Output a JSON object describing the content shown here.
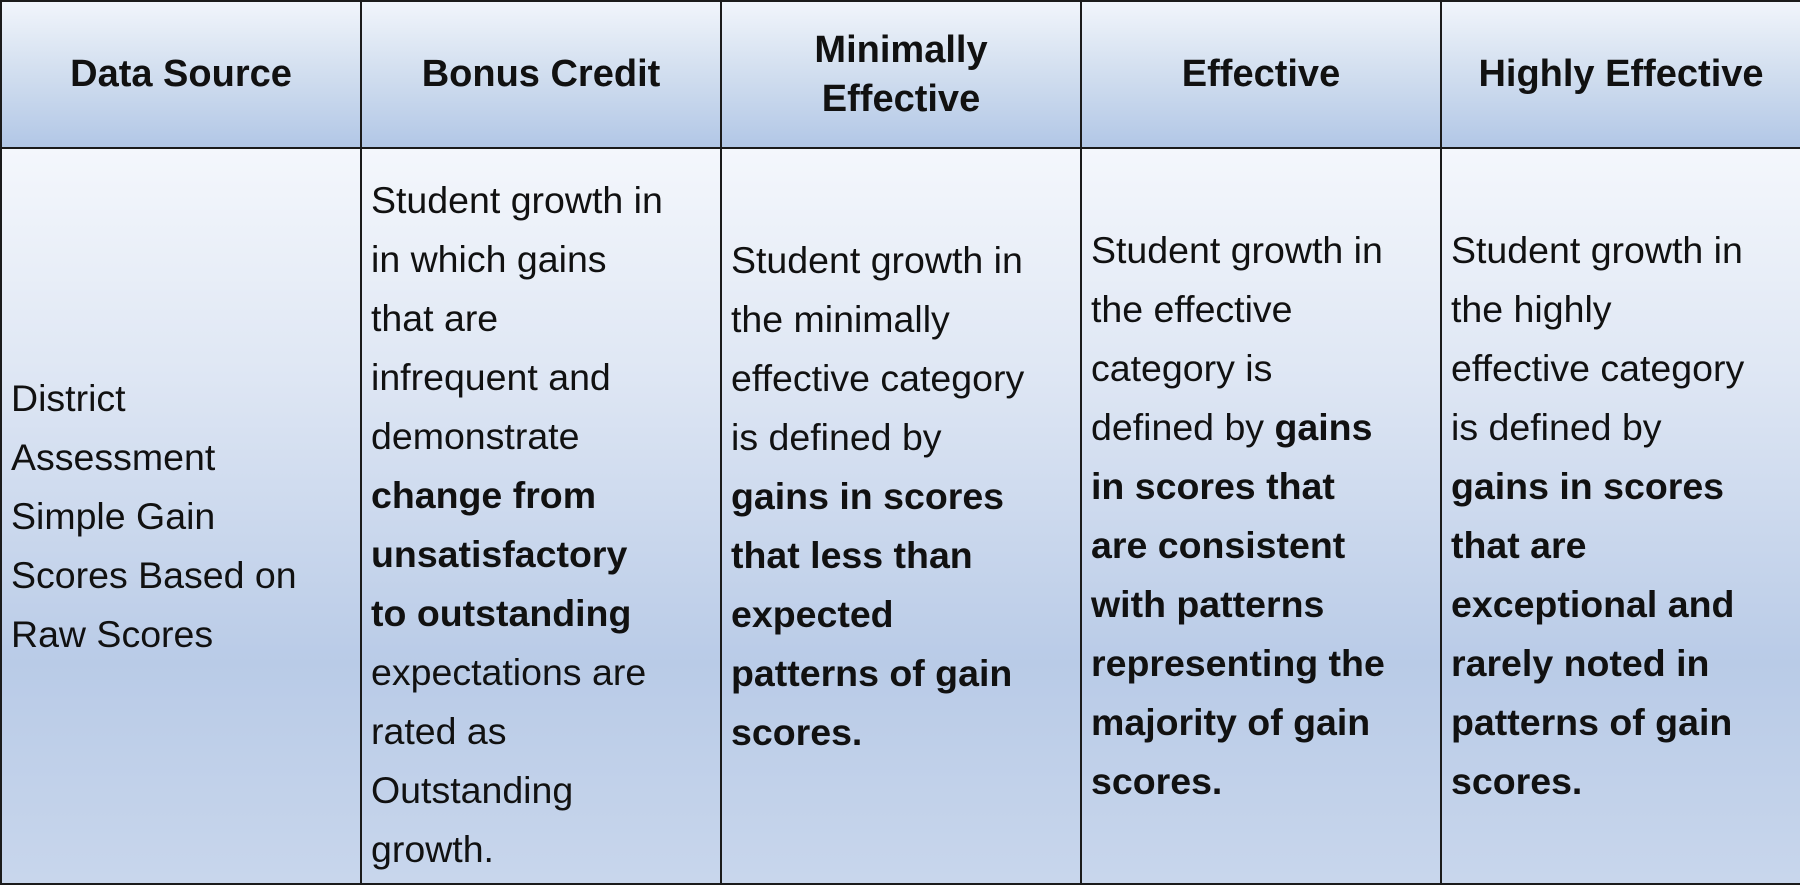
{
  "table": {
    "headers": [
      "Data Source",
      "Bonus Credit",
      "Minimally\nEffective",
      "Effective",
      "Highly Effective"
    ],
    "row": {
      "data_source": "District\nAssessment\nSimple Gain\nScores Based on\nRaw Scores",
      "bonus_credit": {
        "text_1": "Student growth in\nin which gains\nthat are\ninfrequent and\ndemonstrate\n",
        "bold": "change from\nunsatisfactory\nto outstanding",
        "text_2": "\nexpectations are\nrated as\nOutstanding\ngrowth."
      },
      "minimally_effective": {
        "text_1": "Student growth in\nthe minimally\neffective category\nis defined by\n",
        "bold": "gains in scores\nthat less than\nexpected\npatterns of gain\nscores."
      },
      "effective": {
        "text_1": "Student growth in\nthe effective\ncategory is\ndefined by ",
        "bold": "gains\nin scores that\nare consistent\nwith patterns\nrepresenting the\nmajority of gain\nscores."
      },
      "highly_effective": {
        "text_1": "Student growth in\nthe highly\neffective category\nis defined by\n",
        "bold": "gains in scores\nthat are\nexceptional and\nrarely noted in\npatterns of gain\nscores."
      }
    }
  },
  "colors": {
    "border": "#1b1b1b",
    "header_gradient_top": "#f1f5fb",
    "header_gradient_bottom": "#b2c7e6",
    "body_gradient_mid": "#b9cbe7",
    "text": "#111111"
  }
}
